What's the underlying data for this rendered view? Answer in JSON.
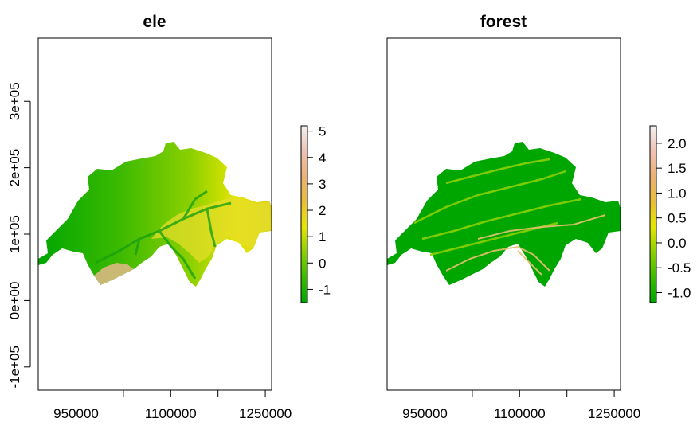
{
  "chart_data": [
    {
      "type": "heatmap",
      "title": "ele",
      "xlabel": "",
      "ylabel": "",
      "x_ticks": [
        950000,
        1100000,
        1250000
      ],
      "x_tick_labels": [
        "950000",
        "1100000",
        "1250000"
      ],
      "x_minor_ticks": [
        950000,
        1025000,
        1100000,
        1175000,
        1250000
      ],
      "xlim": [
        890000,
        1260000
      ],
      "y_ticks": [
        -100000,
        0,
        100000,
        200000,
        300000
      ],
      "y_tick_labels": [
        "-1e+05",
        "0e+00",
        "1e+05",
        "2e+05",
        "3e+05"
      ],
      "ylim": [
        -135000,
        395000
      ],
      "colorbar": {
        "ticks": [
          -1,
          0,
          1,
          2,
          3,
          4,
          5
        ],
        "tick_labels": [
          "-1",
          "0",
          "1",
          "2",
          "3",
          "4",
          "5"
        ],
        "range": [
          -1.5,
          5.2
        ],
        "colors": [
          "#00a600",
          "#3cba00",
          "#8bd000",
          "#e6e600",
          "#e9bd3a",
          "#ecb176",
          "#efc2b3",
          "#f2f2f2"
        ]
      },
      "value_range_shown": [
        -1.5,
        5.2
      ]
    },
    {
      "type": "heatmap",
      "title": "forest",
      "xlabel": "",
      "ylabel": "",
      "x_ticks": [
        950000,
        1100000,
        1250000
      ],
      "x_tick_labels": [
        "950000",
        "1100000",
        "1250000"
      ],
      "x_minor_ticks": [
        950000,
        1025000,
        1100000,
        1175000,
        1250000
      ],
      "xlim": [
        890000,
        1260000
      ],
      "y_ticks": [],
      "ylim": [
        -135000,
        395000
      ],
      "colorbar": {
        "ticks": [
          -1.0,
          -0.5,
          0.0,
          0.5,
          1.0,
          1.5,
          2.0
        ],
        "tick_labels": [
          "-1.0",
          "-0.5",
          "0.0",
          "0.5",
          "1.0",
          "1.5",
          "2.0"
        ],
        "range": [
          -1.2,
          2.35
        ],
        "colors": [
          "#00a600",
          "#3cba00",
          "#8bd000",
          "#e6e600",
          "#e9bd3a",
          "#ecb176",
          "#efc2b3",
          "#f2f2f2"
        ]
      },
      "value_range_shown": [
        -1.2,
        2.35
      ]
    }
  ]
}
